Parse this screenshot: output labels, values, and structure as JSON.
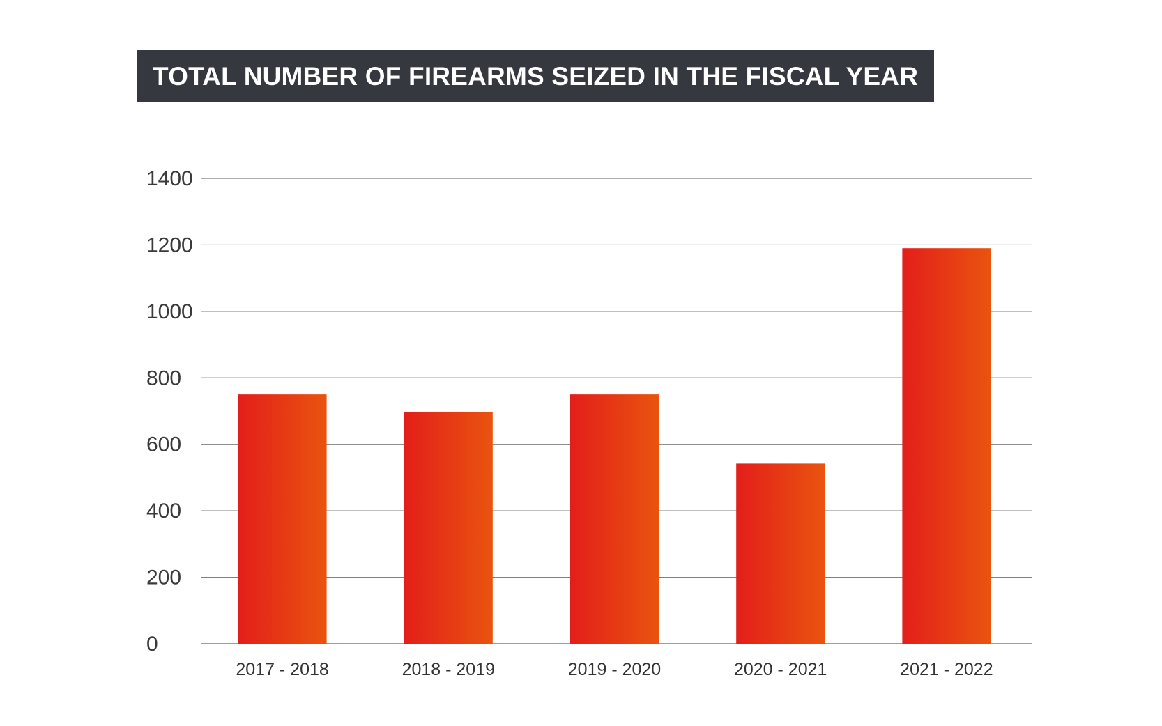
{
  "chart_data": {
    "type": "bar",
    "title": "TOTAL NUMBER OF FIREARMS SEIZED IN THE FISCAL YEAR",
    "categories": [
      "2017 - 2018",
      "2018 - 2019",
      "2019 - 2020",
      "2020 - 2021",
      "2021 - 2022"
    ],
    "values": [
      750,
      697,
      750,
      542,
      1190
    ],
    "ylim": [
      0,
      1400
    ],
    "yticks": [
      0,
      200,
      400,
      600,
      800,
      1000,
      1200,
      1400
    ],
    "ytick_labels": [
      "0",
      "200",
      "400",
      "600",
      "800",
      "1000",
      "1200",
      "1400"
    ],
    "xlabel": "",
    "ylabel": "",
    "grid": true,
    "colors": {
      "bar_start": "#e31e1a",
      "bar_end": "#e9540f",
      "title_bg": "#35383e",
      "title_text": "#ffffff",
      "grid": "#7f7f7f"
    }
  }
}
